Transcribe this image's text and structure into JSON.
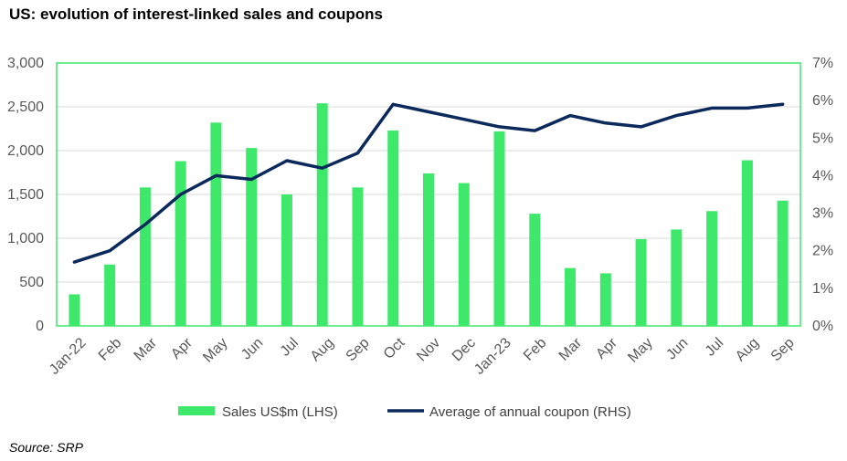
{
  "title": "US: evolution of interest-linked sales and coupons",
  "source": "Source: SRP",
  "colors": {
    "bar": "#3EE86B",
    "line": "#0B2A5B",
    "border": "#3EE86B",
    "grid": "#D9D9D9"
  },
  "chart_data": {
    "type": "bar",
    "categories": [
      "Jan-22",
      "Feb",
      "Mar",
      "Apr",
      "May",
      "Jun",
      "Jul",
      "Aug",
      "Sep",
      "Oct",
      "Nov",
      "Dec",
      "Jan-23",
      "Feb",
      "Mar",
      "Apr",
      "May",
      "Jun",
      "Jul",
      "Aug",
      "Sep"
    ],
    "series": [
      {
        "name": "Sales US$m (LHS)",
        "type": "bar",
        "axis": "left",
        "values": [
          360,
          700,
          1580,
          1880,
          2320,
          2030,
          1500,
          2540,
          1580,
          2230,
          1740,
          1630,
          2220,
          1280,
          660,
          600,
          990,
          1100,
          1310,
          1890,
          1430
        ]
      },
      {
        "name": "Average of annual coupon (RHS)",
        "type": "line",
        "axis": "right",
        "values": [
          1.7,
          2.0,
          2.7,
          3.5,
          4.0,
          3.9,
          4.4,
          4.2,
          4.6,
          5.9,
          5.7,
          5.5,
          5.3,
          5.2,
          5.6,
          5.4,
          5.3,
          5.6,
          5.8,
          5.8,
          5.9
        ]
      }
    ],
    "ylim": [
      0,
      3000
    ],
    "yticks": [
      "0",
      "500",
      "1,000",
      "1,500",
      "2,000",
      "2,500",
      "3,000"
    ],
    "y2lim": [
      0,
      7
    ],
    "y2ticks": [
      "0%",
      "1%",
      "2%",
      "3%",
      "4%",
      "5%",
      "6%",
      "7%"
    ],
    "grid": true,
    "legend_position": "bottom"
  }
}
